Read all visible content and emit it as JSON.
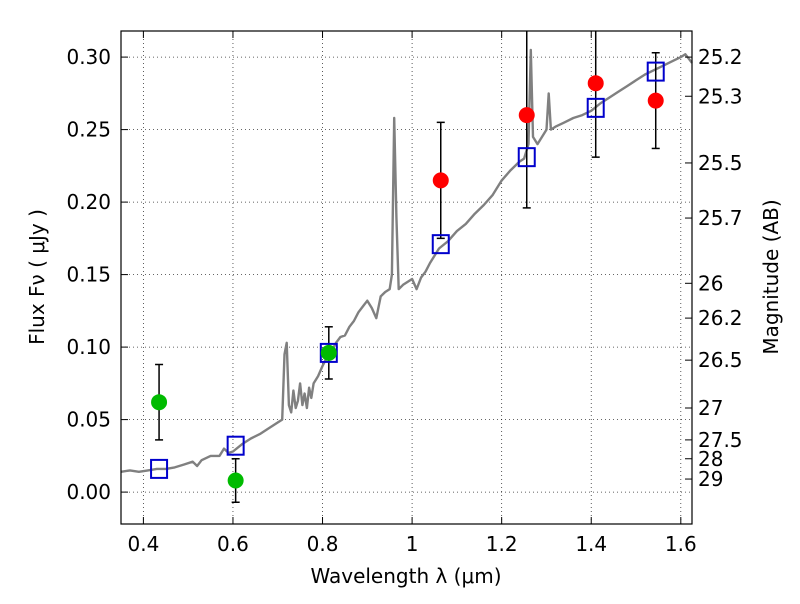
{
  "chart_data": {
    "type": "scatter",
    "xlabel": "Wavelength  λ (μm)",
    "ylabel": "Flux  Fν  ( μJy )",
    "y2label": "Magnitude (AB)",
    "xlim": [
      0.35,
      1.625
    ],
    "ylim": [
      -0.022,
      0.318
    ],
    "xticks": [
      0.4,
      0.6,
      0.8,
      1.0,
      1.2,
      1.4,
      1.6
    ],
    "xtick_labels": [
      "0.4",
      "0.6",
      "0.8",
      "1",
      "1.2",
      "1.4",
      "1.6"
    ],
    "yticks": [
      0.0,
      0.05,
      0.1,
      0.15,
      0.2,
      0.25,
      0.3
    ],
    "ytick_labels": [
      "0.00",
      "0.05",
      "0.10",
      "0.15",
      "0.20",
      "0.25",
      "0.30"
    ],
    "magnitude_ticks": [
      {
        "label": "25.2",
        "flux": 0.3
      },
      {
        "label": "25.3",
        "flux": 0.273
      },
      {
        "label": "25.5",
        "flux": 0.227
      },
      {
        "label": "25.7",
        "flux": 0.189
      },
      {
        "label": "26",
        "flux": 0.144
      },
      {
        "label": "26.2",
        "flux": 0.12
      },
      {
        "label": "26.5",
        "flux": 0.091
      },
      {
        "label": "27",
        "flux": 0.058
      },
      {
        "label": "27.5",
        "flux": 0.036
      },
      {
        "label": "28",
        "flux": 0.023
      },
      {
        "label": "29",
        "flux": 0.009
      }
    ],
    "grid": true,
    "series": [
      {
        "kind": "line",
        "color": "#808080",
        "points": [
          [
            0.35,
            0.014
          ],
          [
            0.37,
            0.015
          ],
          [
            0.39,
            0.014
          ],
          [
            0.41,
            0.015
          ],
          [
            0.43,
            0.016
          ],
          [
            0.45,
            0.016
          ],
          [
            0.47,
            0.017
          ],
          [
            0.49,
            0.019
          ],
          [
            0.51,
            0.021
          ],
          [
            0.52,
            0.018
          ],
          [
            0.53,
            0.022
          ],
          [
            0.55,
            0.025
          ],
          [
            0.57,
            0.025
          ],
          [
            0.58,
            0.03
          ],
          [
            0.59,
            0.027
          ],
          [
            0.6,
            0.028
          ],
          [
            0.62,
            0.033
          ],
          [
            0.64,
            0.037
          ],
          [
            0.66,
            0.04
          ],
          [
            0.68,
            0.044
          ],
          [
            0.7,
            0.048
          ],
          [
            0.71,
            0.05
          ],
          [
            0.715,
            0.095
          ],
          [
            0.72,
            0.103
          ],
          [
            0.725,
            0.06
          ],
          [
            0.73,
            0.055
          ],
          [
            0.735,
            0.07
          ],
          [
            0.74,
            0.058
          ],
          [
            0.745,
            0.063
          ],
          [
            0.75,
            0.075
          ],
          [
            0.755,
            0.06
          ],
          [
            0.76,
            0.068
          ],
          [
            0.765,
            0.058
          ],
          [
            0.77,
            0.072
          ],
          [
            0.775,
            0.065
          ],
          [
            0.78,
            0.075
          ],
          [
            0.79,
            0.08
          ],
          [
            0.8,
            0.087
          ],
          [
            0.81,
            0.093
          ],
          [
            0.82,
            0.097
          ],
          [
            0.83,
            0.103
          ],
          [
            0.84,
            0.107
          ],
          [
            0.85,
            0.108
          ],
          [
            0.86,
            0.114
          ],
          [
            0.87,
            0.118
          ],
          [
            0.88,
            0.124
          ],
          [
            0.89,
            0.128
          ],
          [
            0.9,
            0.132
          ],
          [
            0.91,
            0.127
          ],
          [
            0.92,
            0.12
          ],
          [
            0.93,
            0.135
          ],
          [
            0.94,
            0.138
          ],
          [
            0.95,
            0.14
          ],
          [
            0.955,
            0.15
          ],
          [
            0.96,
            0.258
          ],
          [
            0.965,
            0.19
          ],
          [
            0.97,
            0.14
          ],
          [
            0.98,
            0.143
          ],
          [
            0.99,
            0.145
          ],
          [
            1.0,
            0.147
          ],
          [
            1.01,
            0.14
          ],
          [
            1.02,
            0.148
          ],
          [
            1.03,
            0.152
          ],
          [
            1.04,
            0.158
          ],
          [
            1.05,
            0.163
          ],
          [
            1.06,
            0.168
          ],
          [
            1.08,
            0.173
          ],
          [
            1.1,
            0.18
          ],
          [
            1.12,
            0.185
          ],
          [
            1.14,
            0.192
          ],
          [
            1.16,
            0.198
          ],
          [
            1.18,
            0.205
          ],
          [
            1.2,
            0.215
          ],
          [
            1.22,
            0.222
          ],
          [
            1.24,
            0.228
          ],
          [
            1.25,
            0.23
          ],
          [
            1.26,
            0.24
          ],
          [
            1.265,
            0.305
          ],
          [
            1.27,
            0.245
          ],
          [
            1.28,
            0.24
          ],
          [
            1.29,
            0.245
          ],
          [
            1.3,
            0.25
          ],
          [
            1.305,
            0.275
          ],
          [
            1.31,
            0.25
          ],
          [
            1.32,
            0.252
          ],
          [
            1.34,
            0.255
          ],
          [
            1.36,
            0.258
          ],
          [
            1.38,
            0.26
          ],
          [
            1.4,
            0.263
          ],
          [
            1.42,
            0.268
          ],
          [
            1.44,
            0.272
          ],
          [
            1.46,
            0.276
          ],
          [
            1.48,
            0.28
          ],
          [
            1.5,
            0.284
          ],
          [
            1.52,
            0.288
          ],
          [
            1.54,
            0.291
          ],
          [
            1.56,
            0.294
          ],
          [
            1.58,
            0.297
          ],
          [
            1.6,
            0.3
          ],
          [
            1.61,
            0.302
          ],
          [
            1.625,
            0.296
          ]
        ]
      },
      {
        "kind": "model-photometry",
        "marker": "open-square",
        "color": "#0000cc",
        "points": [
          {
            "x": 0.435,
            "y": 0.016
          },
          {
            "x": 0.606,
            "y": 0.032
          },
          {
            "x": 0.814,
            "y": 0.096
          },
          {
            "x": 1.064,
            "y": 0.171
          },
          {
            "x": 1.256,
            "y": 0.231
          },
          {
            "x": 1.41,
            "y": 0.265
          },
          {
            "x": 1.544,
            "y": 0.29
          }
        ]
      },
      {
        "kind": "observed",
        "marker": "filled-circle",
        "color": "#00bb00",
        "points": [
          {
            "x": 0.435,
            "y": 0.062,
            "err": 0.026
          },
          {
            "x": 0.606,
            "y": 0.008,
            "err": 0.015
          },
          {
            "x": 0.814,
            "y": 0.096,
            "err": 0.018
          }
        ]
      },
      {
        "kind": "observed",
        "marker": "filled-circle",
        "color": "#ff0000",
        "points": [
          {
            "x": 1.064,
            "y": 0.215,
            "err": 0.04
          },
          {
            "x": 1.256,
            "y": 0.26,
            "err": 0.064
          },
          {
            "x": 1.41,
            "y": 0.282,
            "err": 0.051
          },
          {
            "x": 1.544,
            "y": 0.27,
            "err": 0.033
          }
        ]
      }
    ]
  }
}
